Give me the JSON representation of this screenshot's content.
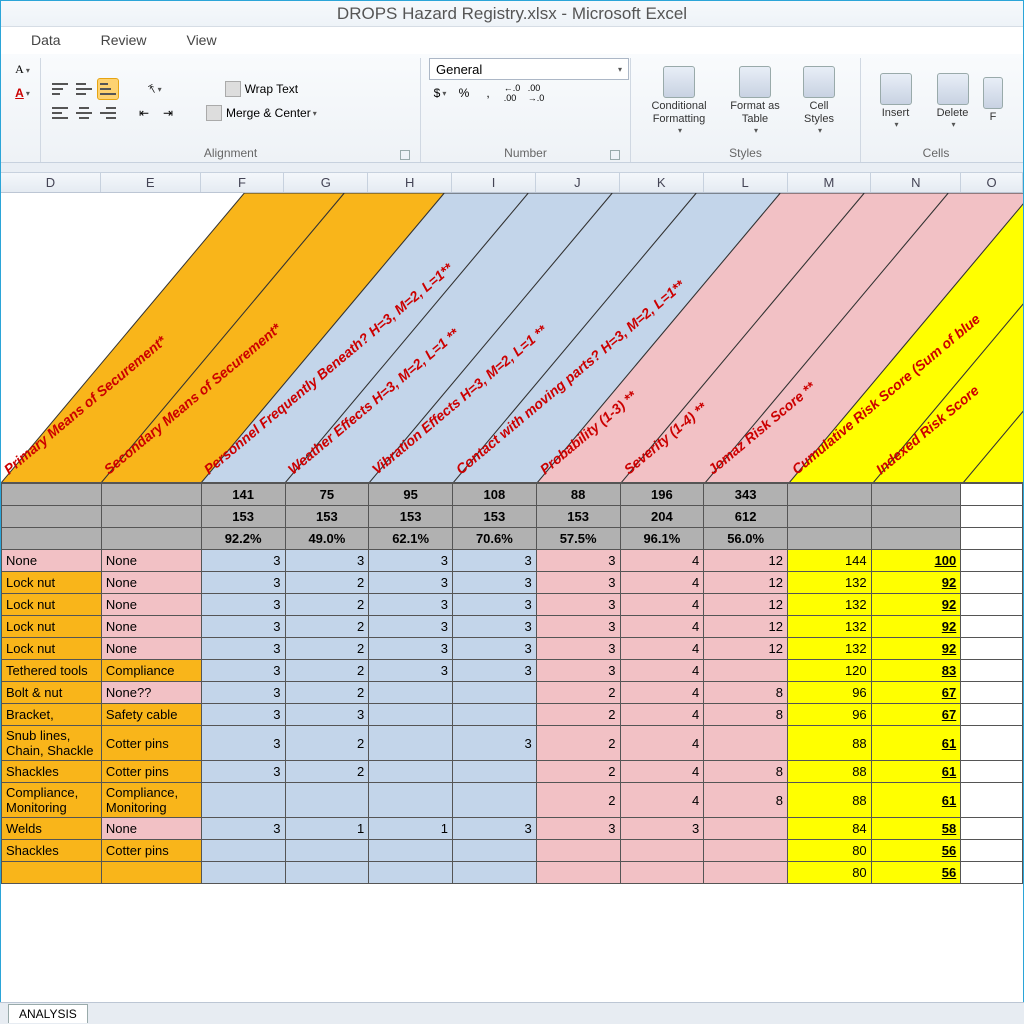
{
  "title": "DROPS Hazard Registry.xlsx - Microsoft Excel",
  "menu": {
    "data": "Data",
    "review": "Review",
    "view": "View"
  },
  "ribbon": {
    "alignment_label": "Alignment",
    "number_label": "Number",
    "styles_label": "Styles",
    "cells_label": "Cells",
    "wrap_text": "Wrap Text",
    "merge_center": "Merge & Center",
    "number_format": "General",
    "currency": "$",
    "percent": "%",
    "comma": ",",
    "inc_dec": ".0",
    "dec_dec": ".00",
    "cond_fmt": "Conditional Formatting",
    "fmt_table": "Format as Table",
    "cell_styles": "Cell Styles",
    "insert": "Insert",
    "delete": "Delete"
  },
  "columns": {
    "letters": [
      "D",
      "E",
      "F",
      "G",
      "H",
      "I",
      "J",
      "K",
      "L",
      "M",
      "N",
      "O"
    ],
    "widths": [
      100,
      100,
      84,
      84,
      84,
      84,
      84,
      84,
      84,
      84,
      90,
      62
    ],
    "diag": [
      {
        "label": "Primary Means of Securement*",
        "bg": "#f9b51a",
        "text": "#c00"
      },
      {
        "label": "Secondary Means of Securement*",
        "bg": "#f9b51a",
        "text": "#c00"
      },
      {
        "label": "Personnel Frequently Beneath? H=3, M=2, L=1**",
        "bg": "#c3d5ea",
        "text": "#c00"
      },
      {
        "label": "Weather Effects H=3, M=2, L=1 **",
        "bg": "#c3d5ea",
        "text": "#c00"
      },
      {
        "label": "Vibration Effects H=3, M=2, L=1 **",
        "bg": "#c3d5ea",
        "text": "#c00"
      },
      {
        "label": "Contact with moving parts? H=3, M=2, L=1**",
        "bg": "#c3d5ea",
        "text": "#c00"
      },
      {
        "label": "Probability (1-3) **",
        "bg": "#f2c1c5",
        "text": "#c00"
      },
      {
        "label": "Severity (1-4) **",
        "bg": "#f2c1c5",
        "text": "#c00"
      },
      {
        "label": "Jomaz Risk Score **",
        "bg": "#f2c1c5",
        "text": "#c00"
      },
      {
        "label": "Cumulative Risk Score (Sum of blue",
        "bg": "#ffff00",
        "text": "#c00"
      },
      {
        "label": "Indexed Risk Score",
        "bg": "#ffff00",
        "text": "#c00"
      }
    ]
  },
  "summary": {
    "r1": [
      "",
      "",
      "141",
      "75",
      "95",
      "108",
      "88",
      "196",
      "343",
      "",
      ""
    ],
    "r2": [
      "",
      "",
      "153",
      "153",
      "153",
      "153",
      "153",
      "204",
      "612",
      "",
      ""
    ],
    "r3": [
      "",
      "",
      "92.2%",
      "49.0%",
      "62.1%",
      "70.6%",
      "57.5%",
      "96.1%",
      "56.0%",
      "",
      ""
    ]
  },
  "rows": [
    {
      "d": "None",
      "e": "None",
      "d_bg": "pink",
      "e_bg": "pink",
      "g": "3",
      "h": "3",
      "i": "3",
      "j": "3",
      "k": "3",
      "l": "4",
      "m": "12",
      "n": "144",
      "o": "100"
    },
    {
      "d": "Lock nut",
      "e": "None",
      "d_bg": "orange",
      "e_bg": "pink",
      "g": "3",
      "h": "2",
      "i": "3",
      "j": "3",
      "k": "3",
      "l": "4",
      "m": "12",
      "n": "132",
      "o": "92"
    },
    {
      "d": "Lock nut",
      "e": "None",
      "d_bg": "orange",
      "e_bg": "pink",
      "g": "3",
      "h": "2",
      "i": "3",
      "j": "3",
      "k": "3",
      "l": "4",
      "m": "12",
      "n": "132",
      "o": "92"
    },
    {
      "d": "Lock nut",
      "e": "None",
      "d_bg": "orange",
      "e_bg": "pink",
      "g": "3",
      "h": "2",
      "i": "3",
      "j": "3",
      "k": "3",
      "l": "4",
      "m": "12",
      "n": "132",
      "o": "92"
    },
    {
      "d": "Lock nut",
      "e": "None",
      "d_bg": "orange",
      "e_bg": "pink",
      "g": "3",
      "h": "2",
      "i": "3",
      "j": "3",
      "k": "3",
      "l": "4",
      "m": "12",
      "n": "132",
      "o": "92"
    },
    {
      "d": "Tethered tools",
      "e": "Compliance",
      "d_bg": "orange",
      "e_bg": "orange",
      "g": "3",
      "h": "2",
      "i": "3",
      "j": "3",
      "k": "3",
      "l": "4",
      "m": "",
      "n": "120",
      "o": "83"
    },
    {
      "d": "Bolt & nut",
      "e": "None??",
      "d_bg": "orange",
      "e_bg": "pink",
      "g": "3",
      "h": "2",
      "i": "",
      "j": "",
      "k": "2",
      "l": "4",
      "m": "8",
      "n": "96",
      "o": "67"
    },
    {
      "d": "Bracket,",
      "e": "Safety cable",
      "d_bg": "orange",
      "e_bg": "orange",
      "g": "3",
      "h": "3",
      "i": "",
      "j": "",
      "k": "2",
      "l": "4",
      "m": "8",
      "n": "96",
      "o": "67"
    },
    {
      "d": "Snub lines, Chain, Shackle",
      "e": "Cotter pins",
      "d_bg": "orange",
      "e_bg": "orange",
      "g": "3",
      "h": "2",
      "i": "",
      "j": "3",
      "k": "2",
      "l": "4",
      "m": "",
      "n": "88",
      "o": "61"
    },
    {
      "d": "Shackles",
      "e": "Cotter pins",
      "d_bg": "orange",
      "e_bg": "orange",
      "g": "3",
      "h": "2",
      "i": "",
      "j": "",
      "k": "2",
      "l": "4",
      "m": "8",
      "n": "88",
      "o": "61"
    },
    {
      "d": "Compliance, Monitoring",
      "e": "Compliance, Monitoring",
      "d_bg": "orange",
      "e_bg": "orange",
      "g": "",
      "h": "",
      "i": "",
      "j": "",
      "k": "2",
      "l": "4",
      "m": "8",
      "n": "88",
      "o": "61"
    },
    {
      "d": "Welds",
      "e": "None",
      "d_bg": "orange",
      "e_bg": "pink",
      "g": "3",
      "h": "1",
      "i": "1",
      "j": "3",
      "k": "3",
      "l": "3",
      "m": "",
      "n": "84",
      "o": "58"
    },
    {
      "d": "Shackles",
      "e": "Cotter pins",
      "d_bg": "orange",
      "e_bg": "orange",
      "g": "",
      "h": "",
      "i": "",
      "j": "",
      "k": "",
      "l": "",
      "m": "",
      "n": "80",
      "o": "56"
    },
    {
      "d": "",
      "e": "",
      "d_bg": "orange",
      "e_bg": "orange",
      "g": "",
      "h": "",
      "i": "",
      "j": "",
      "k": "",
      "l": "",
      "m": "",
      "n": "80",
      "o": "56"
    }
  ],
  "sheet": {
    "active": "ANALYSIS"
  }
}
